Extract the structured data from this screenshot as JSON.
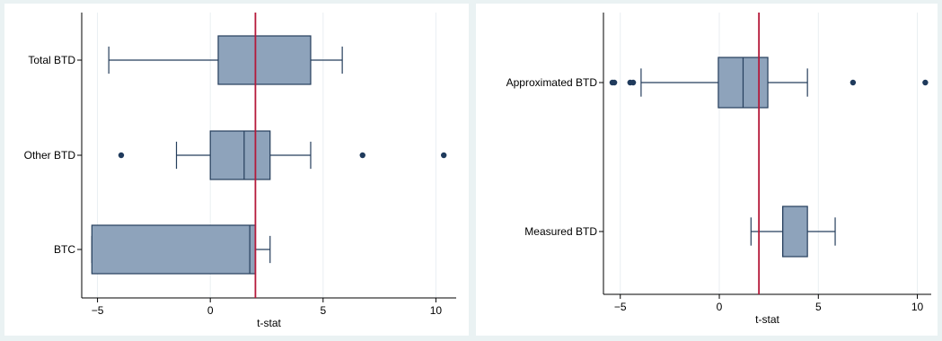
{
  "chart_data": [
    {
      "type": "boxplot",
      "orientation": "horizontal",
      "xlabel": "t-stat",
      "xlim": [
        -5.7,
        10.9
      ],
      "x_ticks": [
        -5,
        0,
        5,
        10
      ],
      "reference_line": 2,
      "reference_line_color": "#b5193a",
      "box_color": "#8ea3bb",
      "outline_color": "#253e5c",
      "grid": true,
      "categories": [
        "Total BTD",
        "Other BTD",
        "BTC"
      ],
      "boxes": [
        {
          "label": "Total BTD",
          "whisker_low": -4.5,
          "q1": 0.35,
          "median": 2.0,
          "q3": 4.45,
          "whisker_high": 5.85,
          "outliers": []
        },
        {
          "label": "Other BTD",
          "whisker_low": -1.5,
          "q1": 0.0,
          "median": 1.5,
          "q3": 2.65,
          "whisker_high": 4.45,
          "outliers": [
            -3.95,
            6.75,
            10.35
          ]
        },
        {
          "label": "BTC",
          "whisker_low": -5.25,
          "q1": -5.25,
          "median": 1.75,
          "q3": 2.0,
          "whisker_high": 2.65,
          "outliers": []
        }
      ]
    },
    {
      "type": "boxplot",
      "orientation": "horizontal",
      "xlabel": "t-stat",
      "xlim": [
        -5.85,
        10.7
      ],
      "x_ticks": [
        -5,
        0,
        5,
        10
      ],
      "reference_line": 2,
      "reference_line_color": "#b5193a",
      "box_color": "#8ea3bb",
      "outline_color": "#253e5c",
      "grid": true,
      "categories": [
        "Approximated BTD",
        "Measured BTD"
      ],
      "boxes": [
        {
          "label": "Approximated BTD",
          "whisker_low": -3.95,
          "q1": -0.05,
          "median": 1.2,
          "q3": 2.45,
          "whisker_high": 4.45,
          "outliers": [
            -5.4,
            -5.3,
            -4.5,
            -4.35,
            6.75,
            10.4
          ]
        },
        {
          "label": "Measured BTD",
          "whisker_low": 1.6,
          "q1": 3.2,
          "median": 3.2,
          "q3": 4.45,
          "whisker_high": 5.85,
          "outliers": []
        }
      ]
    }
  ]
}
